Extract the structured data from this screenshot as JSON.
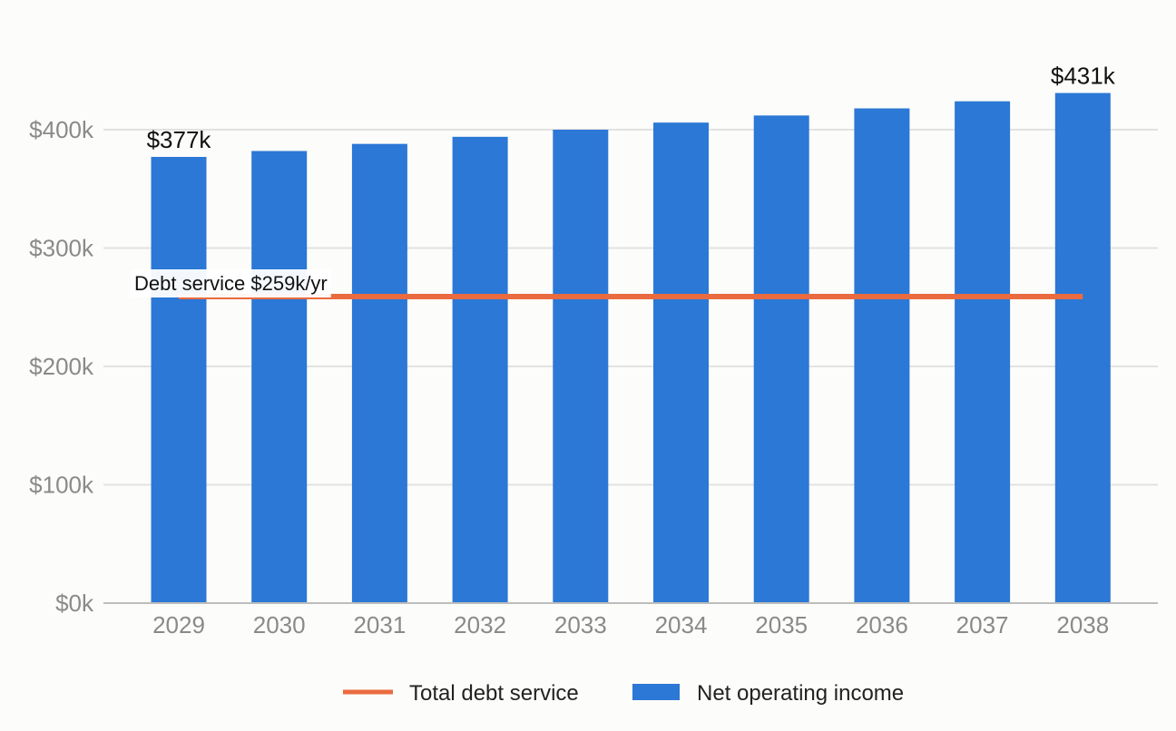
{
  "chart_data": {
    "type": "bar",
    "categories": [
      "2029",
      "2030",
      "2031",
      "2032",
      "2033",
      "2034",
      "2035",
      "2036",
      "2037",
      "2038"
    ],
    "series": [
      {
        "name": "Net operating income",
        "type": "bar",
        "values": [
          377,
          382,
          388,
          394,
          400,
          406,
          412,
          418,
          424,
          431
        ],
        "color": "#2b78d6"
      },
      {
        "name": "Total debt service",
        "type": "line",
        "values": [
          259,
          259,
          259,
          259,
          259,
          259,
          259,
          259,
          259,
          259
        ],
        "color": "#ea6b3f"
      }
    ],
    "ylim": [
      0,
      400
    ],
    "yticks": [
      0,
      100,
      200,
      300,
      400
    ],
    "ytick_labels": [
      "$0k",
      "$100k",
      "$200k",
      "$300k",
      "$400k"
    ],
    "data_labels": [
      {
        "index": 0,
        "text": "$377k"
      },
      {
        "index": 9,
        "text": "$431k"
      }
    ],
    "annotation": {
      "text": "Debt service $259k/yr"
    },
    "grid": true,
    "legend": "bottom"
  }
}
